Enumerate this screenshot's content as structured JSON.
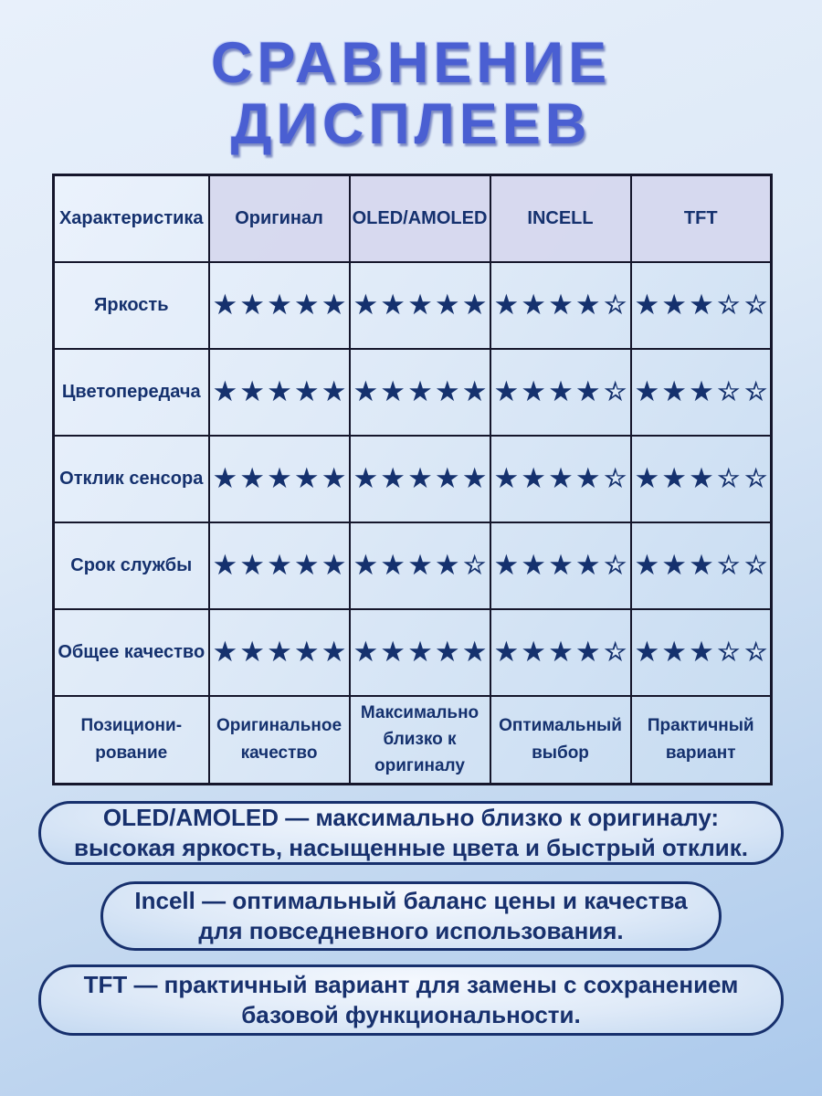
{
  "title": {
    "line1": "СРАВНЕНИЕ",
    "line2": "ДИСПЛЕЕВ"
  },
  "colors": {
    "title_blue": "#4a5fd2",
    "text_navy": "#15316e",
    "table_border": "#15162b",
    "header_lavender": "#d6d8ee",
    "background_top": "#e8f0fb",
    "background_bottom": "#abc9ec"
  },
  "table": {
    "header": [
      "Характеристика",
      "Оригинал",
      "OLED/AMOLED",
      "INCELL",
      "TFT"
    ],
    "rows": [
      {
        "label": "Яркость",
        "ratings": [
          5,
          5,
          4,
          3
        ]
      },
      {
        "label": "Цветопередача",
        "ratings": [
          5,
          5,
          4,
          3
        ]
      },
      {
        "label": "Отклик сенсора",
        "ratings": [
          5,
          5,
          4,
          3
        ]
      },
      {
        "label": "Срок службы",
        "ratings": [
          5,
          4,
          4,
          3
        ]
      },
      {
        "label": "Общее качество",
        "ratings": [
          5,
          5,
          4,
          3
        ]
      }
    ],
    "positioning": {
      "label": "Позициони-\nрование",
      "values": [
        "Оригинальное\nкачество",
        "Максимально\nблизко к\nоригиналу",
        "Оптимальный\nвыбор",
        "Практичный\nвариант"
      ]
    }
  },
  "notes": [
    {
      "text": "OLED/AMOLED — максимально близко к оригиналу:\nвысокая яркость, насыщенные цвета и быстрый отклик."
    },
    {
      "text": "Incell — оптимальный баланс цены и качества\nдля повседневного использования."
    },
    {
      "text": "TFT — практичный вариант для замены с сохранением\nбазовой функциональности."
    }
  ],
  "chart_data": {
    "type": "table",
    "title": "СРАВНЕНИЕ ДИСПЛЕЕВ",
    "columns": [
      "Характеристика",
      "Оригинал",
      "OLED/AMOLED",
      "INCELL",
      "TFT"
    ],
    "rating_max": 5,
    "rows": [
      {
        "characteristic": "Яркость",
        "Оригинал": 5,
        "OLED/AMOLED": 5,
        "INCELL": 4,
        "TFT": 3
      },
      {
        "characteristic": "Цветопередача",
        "Оригинал": 5,
        "OLED/AMOLED": 5,
        "INCELL": 4,
        "TFT": 3
      },
      {
        "characteristic": "Отклик сенсора",
        "Оригинал": 5,
        "OLED/AMOLED": 5,
        "INCELL": 4,
        "TFT": 3
      },
      {
        "characteristic": "Срок службы",
        "Оригинал": 5,
        "OLED/AMOLED": 4,
        "INCELL": 4,
        "TFT": 3
      },
      {
        "characteristic": "Общее качество",
        "Оригинал": 5,
        "OLED/AMOLED": 5,
        "INCELL": 4,
        "TFT": 3
      },
      {
        "characteristic": "Позиционирование",
        "Оригинал": "Оригинальное качество",
        "OLED/AMOLED": "Максимально близко к оригиналу",
        "INCELL": "Оптимальный выбор",
        "TFT": "Практичный вариант"
      }
    ]
  }
}
